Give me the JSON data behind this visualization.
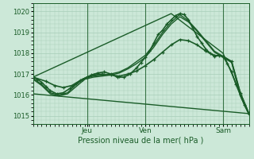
{
  "xlabel": "Pression niveau de la mer( hPa )",
  "ylim": [
    1014.6,
    1020.4
  ],
  "yticks": [
    1015,
    1016,
    1017,
    1018,
    1019,
    1020
  ],
  "bg_color": "#cce8d8",
  "grid_color": "#a8cdb8",
  "line_color": "#1a5c28",
  "tick_label_color": "#1a5c28",
  "xlabel_color": "#1a5c28",
  "xtick_labels": [
    "Jeu",
    "Ven",
    "Sam"
  ],
  "xtick_positions": [
    0.25,
    0.52,
    0.88
  ],
  "series": [
    {
      "x": [
        0.0,
        0.02,
        0.04,
        0.06,
        0.08,
        0.11,
        0.14,
        0.17,
        0.2,
        0.23,
        0.25,
        0.27,
        0.3,
        0.33,
        0.36,
        0.39,
        0.42,
        0.45,
        0.48,
        0.5,
        0.52,
        0.54,
        0.56,
        0.58,
        0.6,
        0.62,
        0.64,
        0.66,
        0.68,
        0.7,
        0.72,
        0.74,
        0.76,
        0.78,
        0.8,
        0.82,
        0.84,
        0.86,
        0.88,
        0.9,
        0.92,
        0.94,
        0.96,
        0.98,
        1.0
      ],
      "y": [
        1016.85,
        1016.75,
        1016.6,
        1016.4,
        1016.2,
        1016.05,
        1016.1,
        1016.3,
        1016.55,
        1016.75,
        1016.85,
        1016.95,
        1017.05,
        1017.1,
        1017.0,
        1016.85,
        1016.85,
        1017.0,
        1017.3,
        1017.55,
        1017.8,
        1018.1,
        1018.5,
        1018.9,
        1019.1,
        1019.4,
        1019.6,
        1019.8,
        1019.9,
        1019.85,
        1019.6,
        1019.2,
        1018.8,
        1018.5,
        1018.2,
        1018.0,
        1017.85,
        1017.9,
        1017.85,
        1017.5,
        1017.1,
        1016.5,
        1016.0,
        1015.5,
        1015.1
      ],
      "marker": "+",
      "linewidth": 1.2,
      "markersize": 3.5
    },
    {
      "x": [
        0.0,
        0.04,
        0.08,
        0.12,
        0.16,
        0.2,
        0.24,
        0.28,
        0.32,
        0.36,
        0.4,
        0.44,
        0.48,
        0.52,
        0.56,
        0.6,
        0.64,
        0.68,
        0.72,
        0.76,
        0.8,
        0.84,
        0.88,
        0.92,
        0.96,
        1.0
      ],
      "y": [
        1016.8,
        1016.5,
        1016.1,
        1016.0,
        1016.1,
        1016.5,
        1016.8,
        1016.9,
        1016.95,
        1017.0,
        1017.1,
        1017.3,
        1017.6,
        1017.9,
        1018.4,
        1019.0,
        1019.5,
        1019.85,
        1019.55,
        1019.1,
        1018.6,
        1018.1,
        1017.85,
        1017.6,
        1016.1,
        1015.1
      ],
      "marker": null,
      "linewidth": 1.0,
      "markersize": 0
    },
    {
      "x": [
        0.0,
        0.04,
        0.08,
        0.12,
        0.16,
        0.2,
        0.24,
        0.28,
        0.32,
        0.36,
        0.4,
        0.44,
        0.48,
        0.52,
        0.56,
        0.6,
        0.64,
        0.68,
        0.72,
        0.76,
        0.8,
        0.84,
        0.88,
        0.92,
        0.96,
        1.0
      ],
      "y": [
        1016.75,
        1016.45,
        1016.05,
        1015.95,
        1016.05,
        1016.4,
        1016.75,
        1016.85,
        1016.9,
        1016.95,
        1017.05,
        1017.25,
        1017.5,
        1017.8,
        1018.3,
        1018.9,
        1019.4,
        1019.75,
        1019.5,
        1019.05,
        1018.55,
        1018.05,
        1017.8,
        1017.55,
        1015.95,
        1015.05
      ],
      "marker": null,
      "linewidth": 1.0,
      "markersize": 0
    },
    {
      "x": [
        0.0,
        1.0
      ],
      "y": [
        1016.05,
        1015.1
      ],
      "marker": null,
      "linewidth": 1.0,
      "markersize": 0
    },
    {
      "x": [
        0.0,
        0.64,
        0.88,
        1.0
      ],
      "y": [
        1016.85,
        1019.9,
        1018.0,
        1015.1
      ],
      "marker": null,
      "linewidth": 1.0,
      "markersize": 0
    },
    {
      "x": [
        0.0,
        0.06,
        0.1,
        0.14,
        0.18,
        0.22,
        0.25,
        0.28,
        0.32,
        0.36,
        0.4,
        0.44,
        0.48,
        0.52,
        0.56,
        0.6,
        0.64,
        0.68,
        0.72,
        0.76,
        0.8,
        0.84,
        0.88,
        0.92,
        0.96,
        1.0
      ],
      "y": [
        1016.85,
        1016.65,
        1016.45,
        1016.35,
        1016.45,
        1016.7,
        1016.85,
        1016.95,
        1017.0,
        1016.95,
        1016.9,
        1017.0,
        1017.15,
        1017.4,
        1017.7,
        1018.05,
        1018.4,
        1018.65,
        1018.6,
        1018.4,
        1018.1,
        1017.9,
        1017.85,
        1017.6,
        1016.1,
        1015.1
      ],
      "marker": "+",
      "linewidth": 1.2,
      "markersize": 3.5
    }
  ]
}
